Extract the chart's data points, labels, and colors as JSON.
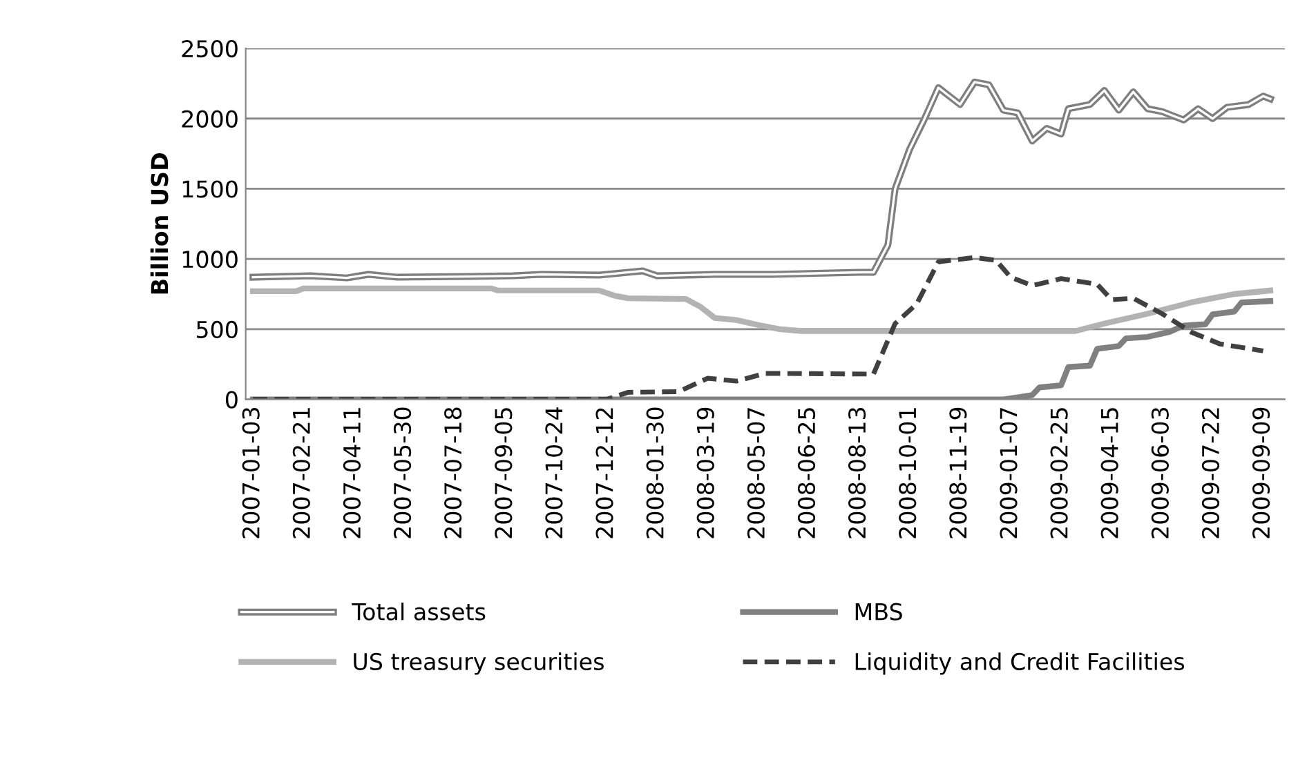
{
  "chart_data": {
    "type": "line",
    "ylabel": "Billion USD",
    "ylim": [
      0,
      2500
    ],
    "yticks": [
      0,
      500,
      1000,
      1500,
      2000,
      2500
    ],
    "xlim": [
      "2006-12-27",
      "2009-09-30"
    ],
    "xticks": [
      "2007-01-03",
      "2007-02-21",
      "2007-04-11",
      "2007-05-30",
      "2007-07-18",
      "2007-09-05",
      "2007-10-24",
      "2007-12-12",
      "2008-01-30",
      "2008-03-19",
      "2008-05-07",
      "2008-06-25",
      "2008-08-13",
      "2008-10-01",
      "2008-11-19",
      "2009-01-07",
      "2009-02-25",
      "2009-04-15",
      "2009-06-03",
      "2009-07-22",
      "2009-09-09"
    ],
    "grid": "y",
    "legend": "bottom",
    "series": [
      {
        "name": "Total assets",
        "color": "#7f7f7f",
        "line_style": "solid",
        "x": [
          "2007-01-03",
          "2007-02-28",
          "2007-04-04",
          "2007-04-25",
          "2007-05-23",
          "2007-08-01",
          "2007-09-12",
          "2007-10-10",
          "2007-12-05",
          "2008-01-16",
          "2008-01-30",
          "2008-03-26",
          "2008-05-21",
          "2008-07-16",
          "2008-08-13",
          "2008-08-27",
          "2008-09-10",
          "2008-09-17",
          "2008-10-01",
          "2008-10-15",
          "2008-10-29",
          "2008-11-19",
          "2008-12-03",
          "2008-12-17",
          "2008-12-31",
          "2009-01-14",
          "2009-01-28",
          "2009-02-11",
          "2009-02-25",
          "2009-03-04",
          "2009-03-25",
          "2009-04-08",
          "2009-04-22",
          "2009-05-06",
          "2009-05-20",
          "2009-06-03",
          "2009-06-24",
          "2009-07-08",
          "2009-07-22",
          "2009-08-05",
          "2009-08-26",
          "2009-09-09",
          "2009-09-16"
        ],
        "values": [
          870,
          880,
          865,
          890,
          870,
          875,
          880,
          890,
          885,
          915,
          880,
          890,
          890,
          900,
          905,
          905,
          1100,
          1500,
          1780,
          1990,
          2220,
          2100,
          2260,
          2240,
          2060,
          2040,
          1840,
          1930,
          1890,
          2070,
          2100,
          2200,
          2060,
          2190,
          2070,
          2050,
          1990,
          2070,
          2000,
          2080,
          2100,
          2160,
          2140
        ]
      },
      {
        "name": "US treasury securities",
        "color": "#b3b3b3",
        "line_style": "solid",
        "x": [
          "2007-01-03",
          "2007-02-14",
          "2007-02-21",
          "2007-08-22",
          "2007-08-29",
          "2007-12-05",
          "2007-12-19",
          "2008-01-02",
          "2008-02-27",
          "2008-03-12",
          "2008-03-26",
          "2008-04-16",
          "2008-05-07",
          "2008-05-28",
          "2008-06-18",
          "2009-03-11",
          "2009-04-08",
          "2009-05-20",
          "2009-07-01",
          "2009-08-12",
          "2009-09-16"
        ],
        "values": [
          770,
          770,
          790,
          790,
          775,
          775,
          740,
          720,
          715,
          660,
          580,
          565,
          530,
          500,
          487,
          487,
          540,
          610,
          690,
          750,
          775
        ]
      },
      {
        "name": "MBS",
        "color": "#808080",
        "line_style": "solid",
        "x": [
          "2007-01-03",
          "2008-12-31",
          "2009-01-14",
          "2009-01-28",
          "2009-02-04",
          "2009-02-25",
          "2009-03-04",
          "2009-03-25",
          "2009-04-01",
          "2009-04-22",
          "2009-04-29",
          "2009-05-20",
          "2009-06-10",
          "2009-06-24",
          "2009-07-15",
          "2009-07-22",
          "2009-08-12",
          "2009-08-19",
          "2009-09-16"
        ],
        "values": [
          0,
          0,
          15,
          30,
          85,
          100,
          230,
          240,
          360,
          380,
          435,
          445,
          480,
          525,
          535,
          605,
          625,
          690,
          700
        ]
      },
      {
        "name": "Liquidity and Credit Facilities",
        "color": "#404040",
        "line_style": "dashed",
        "x": [
          "2007-01-03",
          "2007-12-12",
          "2008-01-02",
          "2008-02-20",
          "2008-03-19",
          "2008-04-16",
          "2008-05-14",
          "2008-08-27",
          "2008-09-17",
          "2008-10-08",
          "2008-10-29",
          "2008-12-03",
          "2008-12-24",
          "2009-01-07",
          "2009-01-28",
          "2009-02-25",
          "2009-04-01",
          "2009-04-15",
          "2009-05-06",
          "2009-06-03",
          "2009-07-01",
          "2009-07-29",
          "2009-09-09"
        ],
        "values": [
          0,
          0,
          50,
          55,
          150,
          130,
          185,
          180,
          540,
          680,
          980,
          1010,
          990,
          870,
          810,
          860,
          820,
          710,
          720,
          610,
          480,
          395,
          345
        ]
      }
    ]
  }
}
